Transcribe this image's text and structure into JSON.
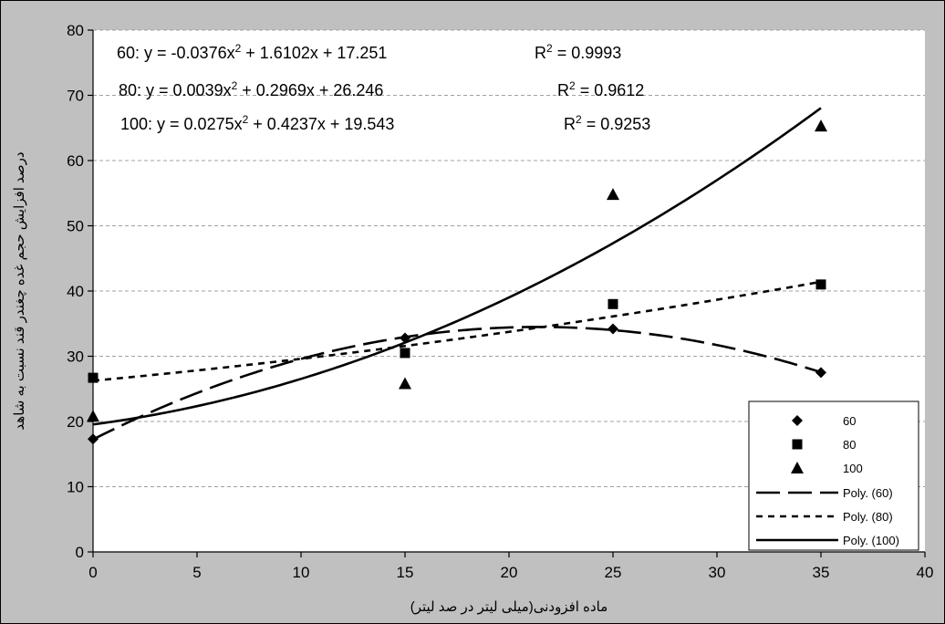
{
  "chart_data": {
    "type": "scatter",
    "xlabel": "ماده افزودنی(میلی لیتر در صد لیتر)",
    "ylabel": "درصد افزایش حجم غده چغندر قند نسبت به شاهد",
    "xlim": [
      0,
      40
    ],
    "ylim": [
      0,
      80
    ],
    "x_ticks": [
      0,
      5,
      10,
      15,
      20,
      25,
      30,
      35,
      40
    ],
    "y_ticks": [
      0,
      10,
      20,
      30,
      40,
      50,
      60,
      70,
      80
    ],
    "grid": "horizontal dashed",
    "legend_position": "bottom-right",
    "series": [
      {
        "name": "60",
        "marker": "diamond",
        "x": [
          0,
          15,
          25,
          35
        ],
        "y": [
          17.3,
          32.8,
          34.2,
          27.5
        ]
      },
      {
        "name": "80",
        "marker": "square",
        "x": [
          0,
          15,
          25,
          35
        ],
        "y": [
          26.7,
          30.5,
          38.0,
          41.0
        ]
      },
      {
        "name": "100",
        "marker": "triangle",
        "x": [
          0,
          15,
          25,
          35
        ],
        "y": [
          20.8,
          25.8,
          54.8,
          65.3
        ]
      }
    ],
    "trendlines": [
      {
        "name": "Poly. (60)",
        "style": "long-dash",
        "coefficients": [
          -0.0376,
          1.6102,
          17.251
        ]
      },
      {
        "name": "Poly. (80)",
        "style": "short-dash",
        "coefficients": [
          0.0039,
          0.2969,
          26.246
        ]
      },
      {
        "name": "Poly. (100)",
        "style": "solid",
        "coefficients": [
          0.0275,
          0.4237,
          19.543
        ]
      }
    ],
    "equations": [
      {
        "prefix": "60: y = -0.0376x",
        "mid": " + 1.6102x + 17.251",
        "r2": " = 0.9993"
      },
      {
        "prefix": "80: y = 0.0039x",
        "mid": " + 0.2969x + 26.246",
        "r2": " = 0.9612"
      },
      {
        "prefix": "100: y = 0.0275x",
        "mid": " + 0.4237x + 19.543",
        "r2": " = 0.9253"
      }
    ],
    "legend": [
      {
        "label": "60",
        "kind": "marker",
        "marker": "diamond"
      },
      {
        "label": "80",
        "kind": "marker",
        "marker": "square"
      },
      {
        "label": "100",
        "kind": "marker",
        "marker": "triangle"
      },
      {
        "label": "Poly. (60)",
        "kind": "line",
        "style": "long-dash"
      },
      {
        "label": "Poly. (80)",
        "kind": "line",
        "style": "short-dash"
      },
      {
        "label": "Poly. (100)",
        "kind": "line",
        "style": "solid"
      }
    ],
    "colors": {
      "frame_bg": "#c0c0c0",
      "plot_bg": "#ffffff",
      "ink": "#000000",
      "grid": "#a0a0a0"
    }
  }
}
